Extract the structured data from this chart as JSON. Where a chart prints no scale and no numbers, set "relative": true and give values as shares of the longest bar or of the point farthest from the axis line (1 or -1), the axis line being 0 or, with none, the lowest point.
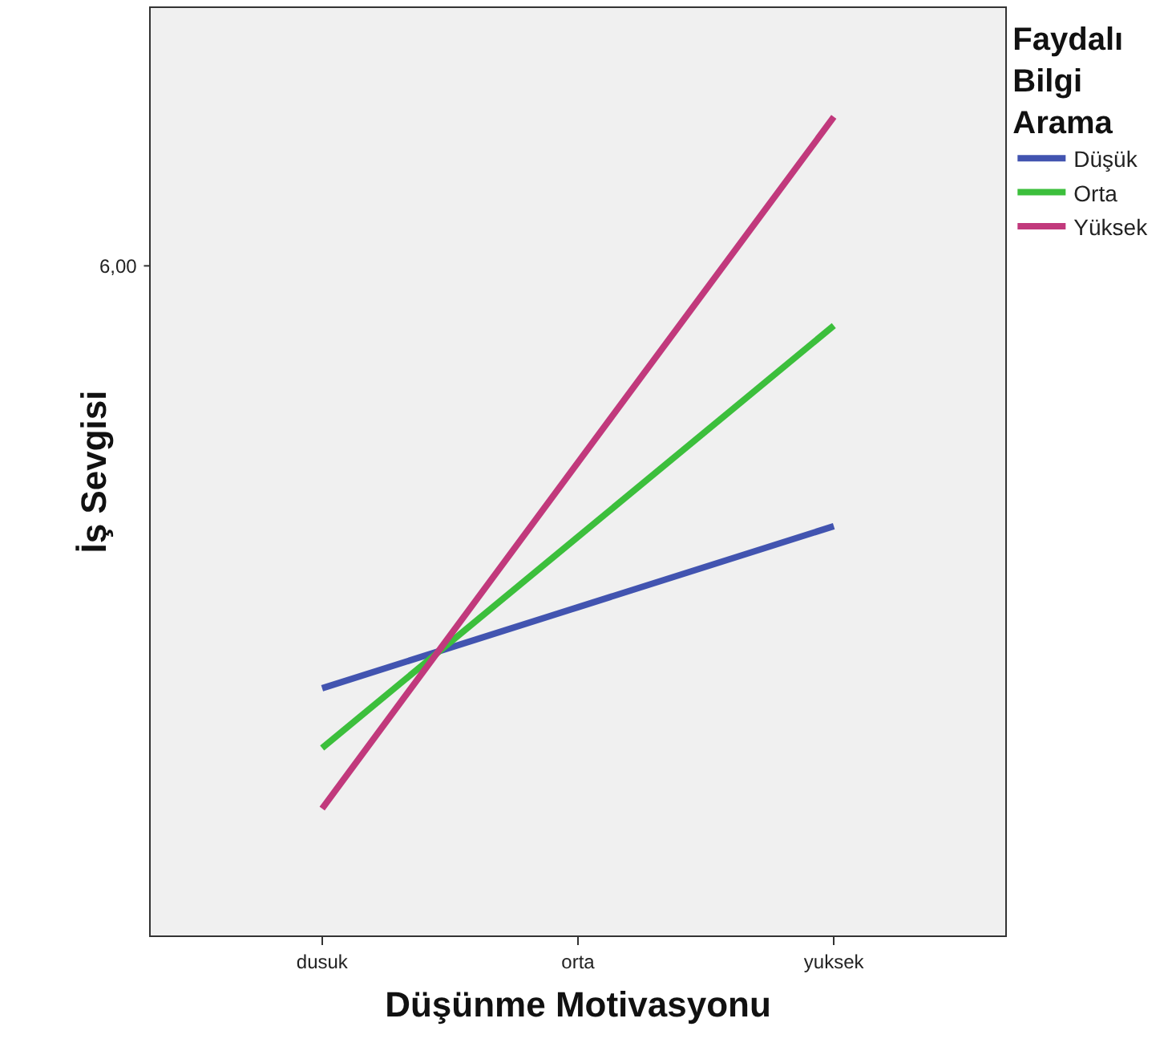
{
  "chart_data": {
    "type": "line",
    "relative": true,
    "xlabel": "Düşünme Motivasyonu",
    "ylabel": "İş Sevgisi",
    "legend_title": "Faydalı Bilgi Arama",
    "legend": "right",
    "grid": false,
    "marker": "none",
    "line_style": "solid",
    "categories": [
      "dusuk",
      "orta",
      "yuksek"
    ],
    "annotations": [
      "6,00"
    ],
    "series": [
      {
        "name": "Düşük",
        "color": "#4254b0",
        "values": [
          0.302,
          0.401,
          0.5
        ]
      },
      {
        "name": "Orta",
        "color": "#3cbf3c",
        "values": [
          0.229,
          0.487,
          0.745
        ]
      },
      {
        "name": "Yüksek",
        "color": "#c1397c",
        "values": [
          0.155,
          0.578,
          1
        ]
      }
    ]
  }
}
